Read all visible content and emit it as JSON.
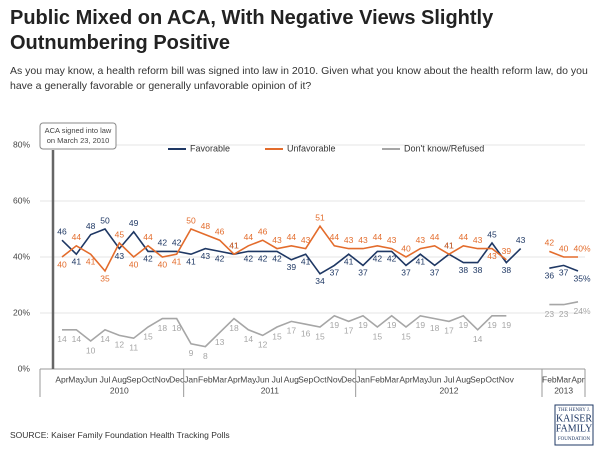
{
  "chart_data": {
    "type": "line",
    "title": "Public Mixed on ACA, With Negative Views Slightly Outnumbering Positive",
    "subtitle": "As you may know, a health reform bill was signed into law in 2010. Given what you know about the health reform law, do you have a generally favorable or generally unfavorable opinion of it?",
    "annotation": "ACA signed into law on March 23, 2010",
    "source": "SOURCE: Kaiser Family Foundation Health Tracking Polls",
    "logo": [
      "THE HENRY J.",
      "KAISER",
      "FAMILY",
      "FOUNDATION"
    ],
    "years": [
      "2010",
      "2011",
      "2012",
      "2013"
    ],
    "categories": [
      "Apr",
      "May",
      "Jun",
      "Jul",
      "Aug",
      "Sep",
      "Oct",
      "Nov",
      "Dec",
      "Jan",
      "Feb",
      "Mar",
      "Apr",
      "May",
      "Jun",
      "Jul",
      "Aug",
      "Sep",
      "Oct",
      "Nov",
      "Dec",
      "Jan",
      "Feb",
      "Mar",
      "Apr",
      "May",
      "Jun",
      "Jul",
      "Aug",
      "Sep",
      "Oct",
      "Nov",
      null,
      null,
      "Feb",
      "Mar",
      "Apr"
    ],
    "ylim": [
      0,
      80
    ],
    "yticks": [
      {
        "value": 0,
        "label": "0%"
      },
      {
        "value": 20,
        "label": "20%"
      },
      {
        "value": 40,
        "label": "40%"
      },
      {
        "value": 60,
        "label": "60%"
      },
      {
        "value": 80,
        "label": "80%"
      }
    ],
    "grid": true,
    "series": [
      {
        "name": "Favorable",
        "color": "#1f3864",
        "values": [
          46,
          41,
          48,
          50,
          43,
          49,
          42,
          42,
          42,
          41,
          43,
          42,
          41,
          42,
          42,
          42,
          39,
          41,
          34,
          37,
          41,
          37,
          42,
          42,
          37,
          41,
          37,
          41,
          38,
          38,
          45,
          38,
          43,
          null,
          36,
          37,
          35
        ],
        "value_labels": {
          "36": "35%"
        }
      },
      {
        "name": "Unfavorable",
        "color": "#e36c2c",
        "values": [
          40,
          44,
          41,
          35,
          45,
          40,
          44,
          40,
          41,
          50,
          48,
          46,
          41,
          44,
          46,
          43,
          44,
          43,
          51,
          44,
          43,
          43,
          44,
          43,
          40,
          43,
          44,
          41,
          44,
          43,
          43,
          39,
          null,
          null,
          42,
          40,
          40
        ],
        "value_labels": {
          "36": "40%"
        }
      },
      {
        "name": "Don't know/Refused",
        "color": "#a6a6a6",
        "values": [
          14,
          14,
          10,
          14,
          12,
          11,
          15,
          18,
          18,
          9,
          8,
          13,
          18,
          14,
          12,
          15,
          17,
          16,
          15,
          19,
          17,
          19,
          15,
          19,
          15,
          19,
          18,
          17,
          19,
          14,
          19,
          19,
          null,
          null,
          23,
          23,
          24
        ],
        "value_labels": {
          "36": "24%"
        }
      }
    ]
  }
}
